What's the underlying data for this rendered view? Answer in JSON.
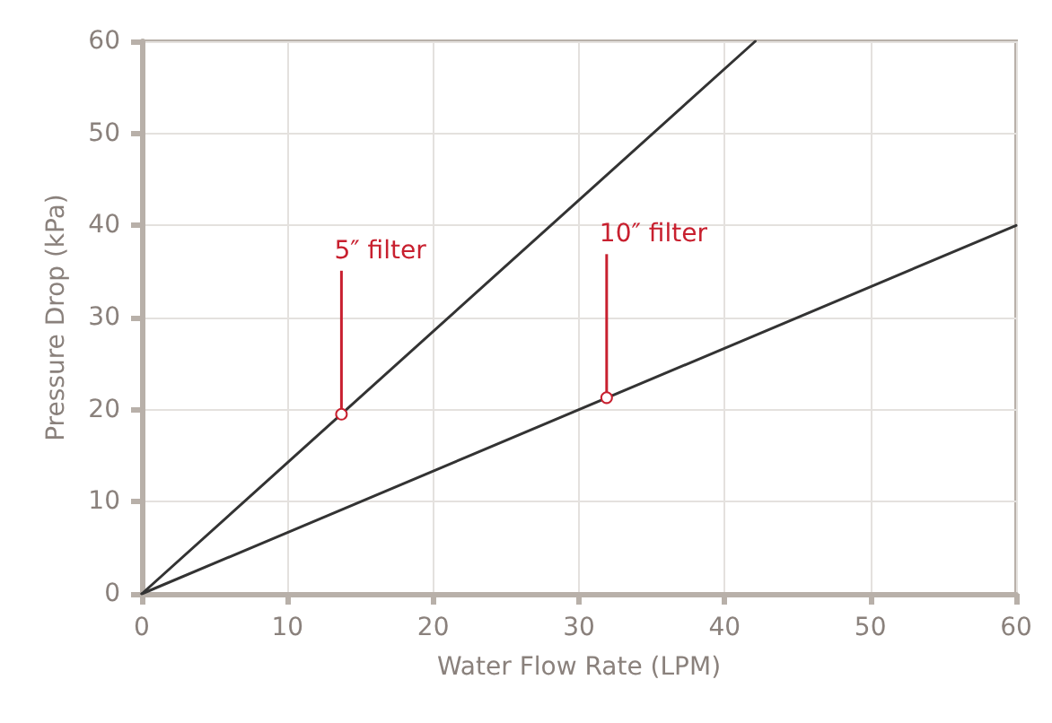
{
  "chart_data": {
    "type": "line",
    "xlabel": "Water Flow Rate (LPM)",
    "ylabel": "Pressure Drop (kPa)",
    "xlim": [
      0,
      60
    ],
    "xticks": [
      0,
      10,
      20,
      30,
      40,
      50,
      60
    ],
    "ylim": [
      0,
      60
    ],
    "yticks": [
      0,
      10,
      20,
      30,
      40,
      50,
      60
    ],
    "grid": true,
    "marker": "none",
    "line_style": "solid",
    "series": [
      {
        "color": "#333333",
        "x": [
          0,
          42.1
        ],
        "values": [
          0,
          60
        ]
      },
      {
        "color": "#333333",
        "x": [
          0,
          60
        ],
        "values": [
          0,
          40
        ]
      }
    ],
    "annotations": [
      {
        "text": "5″ filter",
        "x": 13.7,
        "y": 19.5
      },
      {
        "text": "10″ filter",
        "x": 31.9,
        "y": 21.3
      }
    ]
  }
}
